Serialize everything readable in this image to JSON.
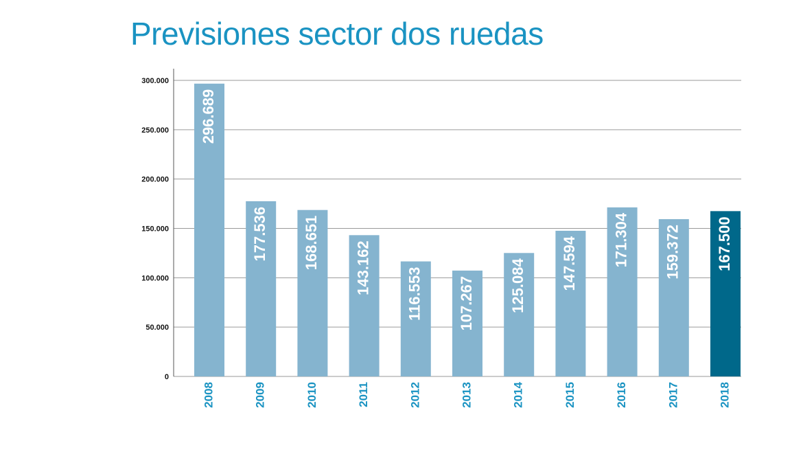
{
  "chart_data": {
    "type": "bar",
    "title": "Previsiones sector dos ruedas",
    "xlabel": "",
    "ylabel": "",
    "categories": [
      "2008",
      "2009",
      "2010",
      "2011",
      "2012",
      "2013",
      "2014",
      "2015",
      "2016",
      "2017",
      "2018"
    ],
    "values": [
      296689,
      177536,
      168651,
      143162,
      116553,
      107267,
      125084,
      147594,
      171304,
      159372,
      167500
    ],
    "data_labels": [
      "296.689",
      "177.536",
      "168.651",
      "143.162",
      "116.553",
      "107.267",
      "125.084",
      "147.594",
      "171.304",
      "159.372",
      "167.500"
    ],
    "yticks": [
      0,
      50000,
      100000,
      150000,
      200000,
      250000,
      300000
    ],
    "ytick_labels": [
      "0",
      "50.000",
      "100.000",
      "150.000",
      "200.000",
      "250.000",
      "300.000"
    ],
    "ylim": [
      0,
      300000
    ],
    "grid": true,
    "highlight_category": "2018",
    "colors": {
      "title": "#1a93c2",
      "bar": "#85b4cf",
      "highlight_bar": "#00688a",
      "category_label": "#1a93c2",
      "data_label": "#ffffff",
      "grid": "#9a9a9a",
      "axis": "#555555",
      "tick_label": "#111111"
    }
  }
}
